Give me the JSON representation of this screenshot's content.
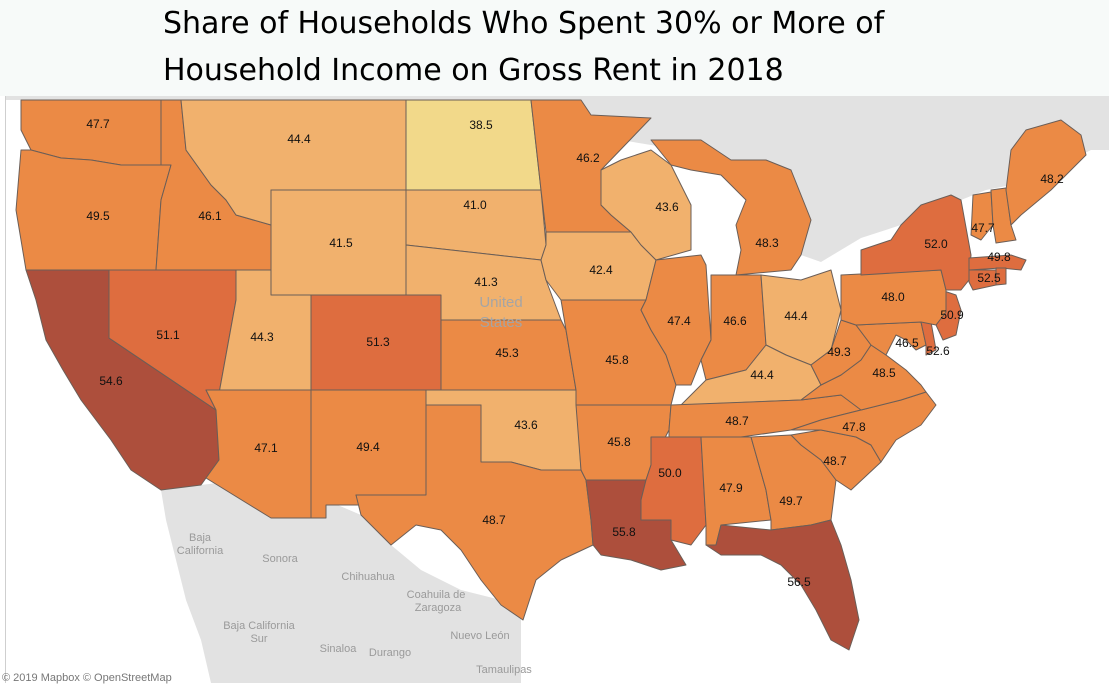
{
  "title": {
    "line1": "Share of Households Who Spent 30% or More of",
    "line2": "Household Income on Gross Rent in 2018"
  },
  "colors": {
    "water": "#ffffff",
    "background_land": "#e2e2e2",
    "scale": [
      "#f2d98a",
      "#f1b16d",
      "#eb8a45",
      "#de6d3f",
      "#ad4f3c"
    ]
  },
  "map_labels": {
    "country": [
      "United",
      "States"
    ],
    "mexico_regions": [
      "Baja",
      "California",
      "Sonora",
      "Chihuahua",
      "Coahuila de",
      "Zaragoza",
      "Baja California",
      "Sur",
      "Sinaloa",
      "Durango",
      "Nuevo León",
      "Tamaulipas"
    ]
  },
  "states": [
    {
      "abbr": "WA",
      "value": "47.7"
    },
    {
      "abbr": "OR",
      "value": "49.5"
    },
    {
      "abbr": "CA",
      "value": "54.6"
    },
    {
      "abbr": "NV",
      "value": "51.1"
    },
    {
      "abbr": "ID",
      "value": "46.1"
    },
    {
      "abbr": "MT",
      "value": "44.4"
    },
    {
      "abbr": "WY",
      "value": "41.5"
    },
    {
      "abbr": "UT",
      "value": "44.3"
    },
    {
      "abbr": "AZ",
      "value": "47.1"
    },
    {
      "abbr": "CO",
      "value": "51.3"
    },
    {
      "abbr": "NM",
      "value": "49.4"
    },
    {
      "abbr": "ND",
      "value": "38.5"
    },
    {
      "abbr": "SD",
      "value": "41.0"
    },
    {
      "abbr": "NE",
      "value": "41.3"
    },
    {
      "abbr": "KS",
      "value": "45.3"
    },
    {
      "abbr": "OK",
      "value": "43.6"
    },
    {
      "abbr": "TX",
      "value": "48.7"
    },
    {
      "abbr": "MN",
      "value": "46.2"
    },
    {
      "abbr": "IA",
      "value": "42.4"
    },
    {
      "abbr": "MO",
      "value": "45.8"
    },
    {
      "abbr": "AR",
      "value": "45.8"
    },
    {
      "abbr": "LA",
      "value": "55.8"
    },
    {
      "abbr": "WI",
      "value": "43.6"
    },
    {
      "abbr": "IL",
      "value": "47.4"
    },
    {
      "abbr": "MI",
      "value": "48.3"
    },
    {
      "abbr": "IN",
      "value": "46.6"
    },
    {
      "abbr": "OH",
      "value": "44.4"
    },
    {
      "abbr": "KY",
      "value": "44.4"
    },
    {
      "abbr": "TN",
      "value": "48.7"
    },
    {
      "abbr": "MS",
      "value": "50.0"
    },
    {
      "abbr": "AL",
      "value": "47.9"
    },
    {
      "abbr": "GA",
      "value": "49.7"
    },
    {
      "abbr": "FL",
      "value": "56.5"
    },
    {
      "abbr": "SC",
      "value": "48.7"
    },
    {
      "abbr": "NC",
      "value": "47.8"
    },
    {
      "abbr": "VA",
      "value": "48.5"
    },
    {
      "abbr": "WV",
      "value": "49.3"
    },
    {
      "abbr": "MD",
      "value": "46.5"
    },
    {
      "abbr": "DE",
      "value": "52.6"
    },
    {
      "abbr": "NJ",
      "value": "50.9"
    },
    {
      "abbr": "PA",
      "value": "48.0"
    },
    {
      "abbr": "NY",
      "value": "52.0"
    },
    {
      "abbr": "VT",
      "value": "47.7"
    },
    {
      "abbr": "NH",
      "value": "49.8"
    },
    {
      "abbr": "ME",
      "value": "48.2"
    },
    {
      "abbr": "MA",
      "value": "52.5"
    },
    {
      "abbr": "CT",
      "value": ""
    },
    {
      "abbr": "RI",
      "value": ""
    }
  ],
  "attribution": "© 2019 Mapbox © OpenStreetMap"
}
